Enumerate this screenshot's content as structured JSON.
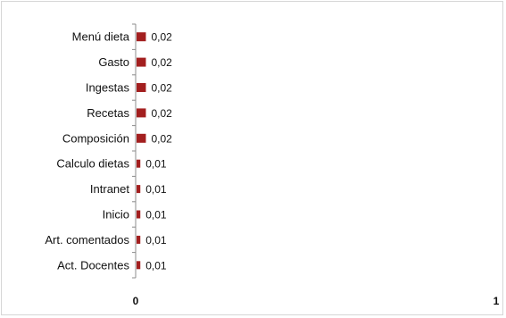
{
  "chart_data": {
    "type": "bar",
    "orientation": "horizontal",
    "categories": [
      "Menú dieta",
      "Gasto",
      "Ingestas",
      "Recetas",
      "Composición",
      "Calculo dietas",
      "Intranet",
      "Inicio",
      "Art. comentados",
      "Act. Docentes"
    ],
    "values": [
      0.02,
      0.02,
      0.02,
      0.02,
      0.02,
      0.01,
      0.01,
      0.01,
      0.01,
      0.01
    ],
    "data_labels": [
      "0,02",
      "0,02",
      "0,02",
      "0,02",
      "0,02",
      "0,01",
      "0,01",
      "0,01",
      "0,01",
      "0,01"
    ],
    "x_ticks": [
      "0",
      "1"
    ],
    "xlim": [
      0,
      1
    ],
    "grid": false,
    "legend": "none",
    "bar_color": "#a31f1f",
    "axis_color": "#8c8c8c"
  }
}
